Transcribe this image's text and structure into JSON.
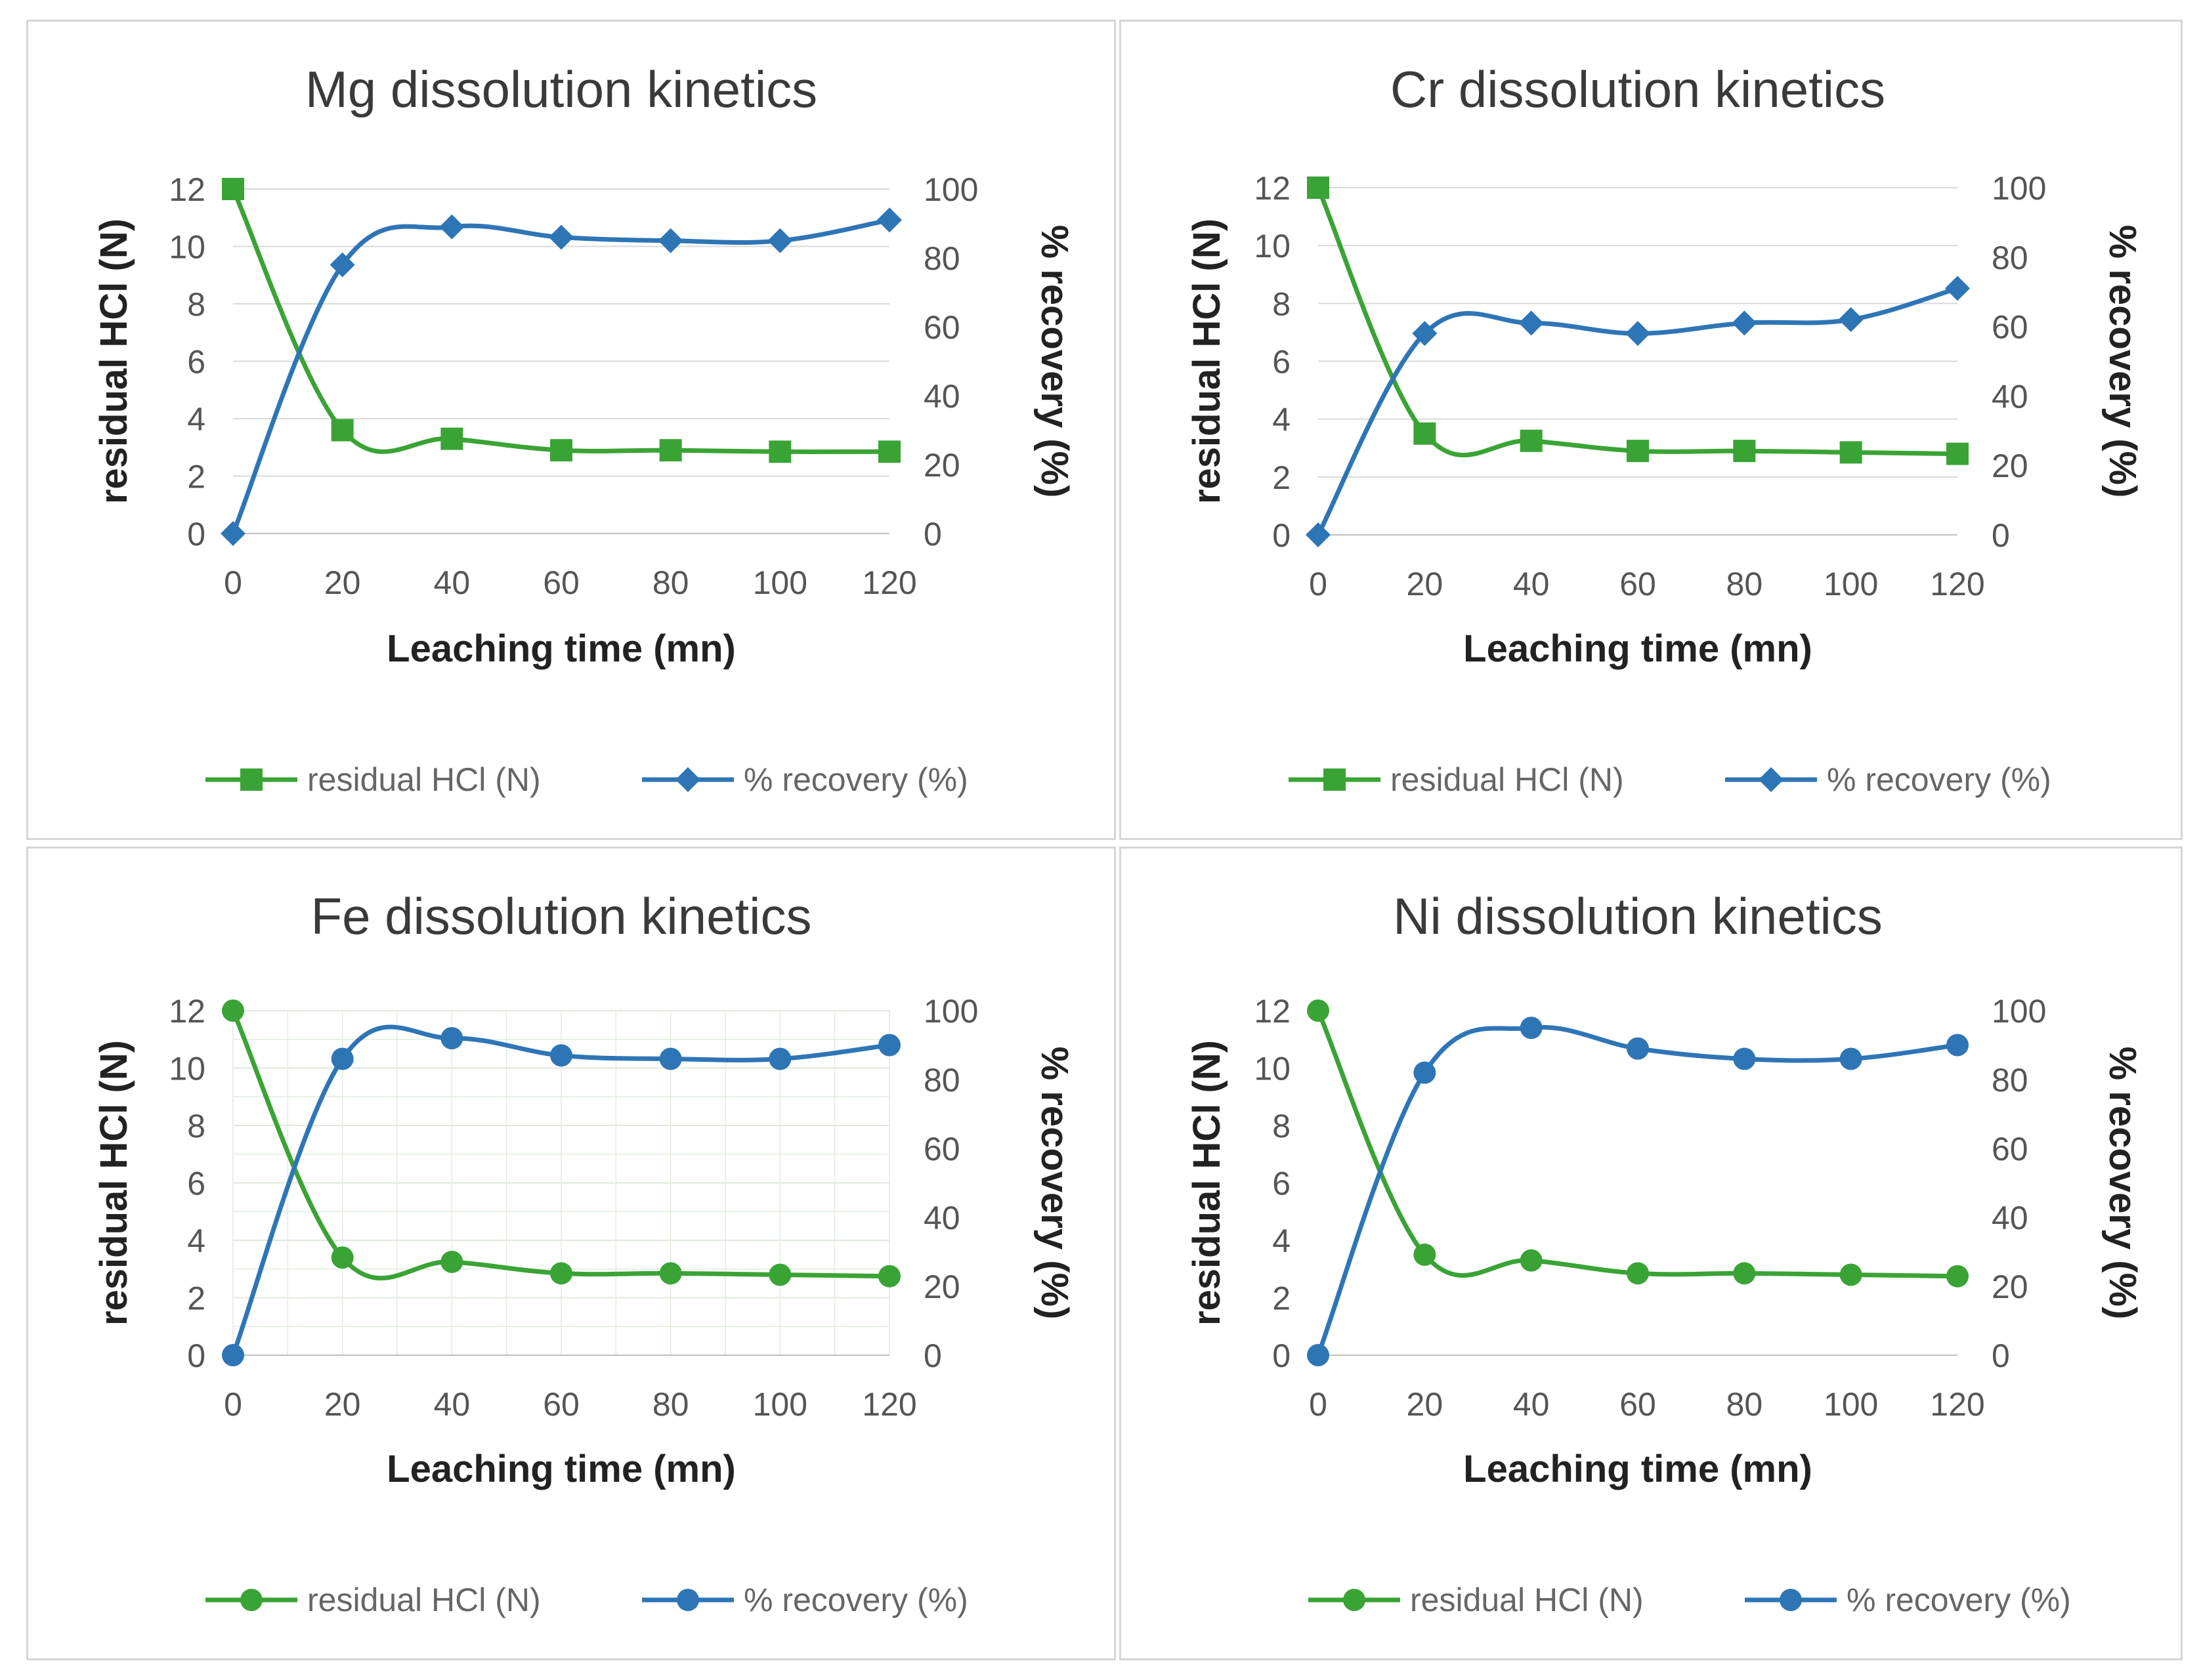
{
  "colors": {
    "hcl": "#3aa335",
    "recovery": "#2e75b6",
    "grid": "#d9d9d9",
    "axis": "#bfbfbf"
  },
  "chart_data": [
    {
      "type": "line",
      "title": "Mg dissolution kinetics",
      "xlabel": "Leaching time (mn)",
      "ylabel": "residual HCl (N)",
      "y2label": "% recovery (%)",
      "x": [
        0,
        20,
        40,
        60,
        80,
        100,
        120
      ],
      "xlim": [
        0,
        120
      ],
      "ylim": [
        0,
        12
      ],
      "y2lim": [
        0,
        100
      ],
      "xticks": [
        "0",
        "20",
        "40",
        "60",
        "80",
        "100",
        "120"
      ],
      "yticks": [
        "0",
        "2",
        "4",
        "6",
        "8",
        "10",
        "12"
      ],
      "y2ticks": [
        "0",
        "20",
        "40",
        "60",
        "80",
        "100"
      ],
      "grid": "horizontal",
      "legend_position": "bottom",
      "series": [
        {
          "name": "residual HCl (N)",
          "axis": "left",
          "marker": "square",
          "color": "#3aa335",
          "values": [
            12.0,
            3.6,
            3.3,
            2.9,
            2.9,
            2.85,
            2.85
          ]
        },
        {
          "name": "% recovery (%)",
          "axis": "right",
          "marker": "diamond",
          "color": "#2e75b6",
          "values": [
            0,
            78,
            89,
            86,
            85,
            85,
            91
          ]
        }
      ]
    },
    {
      "type": "line",
      "title": "Cr dissolution kinetics",
      "xlabel": "Leaching time (mn)",
      "ylabel": "residual HCl (N)",
      "y2label": "% recovery (%)",
      "x": [
        0,
        20,
        40,
        60,
        80,
        100,
        120
      ],
      "xlim": [
        0,
        120
      ],
      "ylim": [
        0,
        12
      ],
      "y2lim": [
        0,
        100
      ],
      "xticks": [
        "0",
        "20",
        "40",
        "60",
        "80",
        "100",
        "120"
      ],
      "yticks": [
        "0",
        "2",
        "4",
        "6",
        "8",
        "10",
        "12"
      ],
      "y2ticks": [
        "0",
        "20",
        "40",
        "60",
        "80",
        "100"
      ],
      "grid": "horizontal",
      "legend_position": "bottom",
      "series": [
        {
          "name": "residual HCl (N)",
          "axis": "left",
          "marker": "square",
          "color": "#3aa335",
          "values": [
            12.0,
            3.5,
            3.25,
            2.9,
            2.9,
            2.85,
            2.8
          ]
        },
        {
          "name": "% recovery (%)",
          "axis": "right",
          "marker": "diamond",
          "color": "#2e75b6",
          "values": [
            0,
            58,
            61,
            58,
            61,
            62,
            71
          ]
        }
      ]
    },
    {
      "type": "line",
      "title": "Fe dissolution kinetics",
      "xlabel": "Leaching time (mn)",
      "ylabel": "residual HCl (N)",
      "y2label": "% recovery (%)",
      "x": [
        0,
        20,
        40,
        60,
        80,
        100,
        120
      ],
      "xlim": [
        0,
        120
      ],
      "ylim": [
        0,
        12
      ],
      "y2lim": [
        0,
        100
      ],
      "xticks": [
        "0",
        "20",
        "40",
        "60",
        "80",
        "100",
        "120"
      ],
      "yticks": [
        "0",
        "2",
        "4",
        "6",
        "8",
        "10",
        "12"
      ],
      "y2ticks": [
        "0",
        "20",
        "40",
        "60",
        "80",
        "100"
      ],
      "grid": "both",
      "legend_position": "bottom",
      "series": [
        {
          "name": "residual HCl (N)",
          "axis": "left",
          "marker": "circle",
          "color": "#3aa335",
          "values": [
            12.0,
            3.4,
            3.25,
            2.85,
            2.85,
            2.8,
            2.75
          ]
        },
        {
          "name": "% recovery (%)",
          "axis": "right",
          "marker": "circle",
          "color": "#2e75b6",
          "values": [
            0,
            86,
            92,
            87,
            86,
            86,
            90
          ]
        }
      ]
    },
    {
      "type": "line",
      "title": "Ni dissolution kinetics",
      "xlabel": "Leaching time (mn)",
      "ylabel": "residual HCl (N)",
      "y2label": "% recovery (%)",
      "x": [
        0,
        20,
        40,
        60,
        80,
        100,
        120
      ],
      "xlim": [
        0,
        120
      ],
      "ylim": [
        0,
        12
      ],
      "y2lim": [
        0,
        100
      ],
      "xticks": [
        "0",
        "20",
        "40",
        "60",
        "80",
        "100",
        "120"
      ],
      "yticks": [
        "0",
        "2",
        "4",
        "6",
        "8",
        "10",
        "12"
      ],
      "y2ticks": [
        "0",
        "20",
        "40",
        "60",
        "80",
        "100"
      ],
      "grid": "none",
      "legend_position": "bottom",
      "series": [
        {
          "name": "residual HCl (N)",
          "axis": "left",
          "marker": "circle",
          "color": "#3aa335",
          "values": [
            12.0,
            3.5,
            3.3,
            2.85,
            2.85,
            2.8,
            2.75
          ]
        },
        {
          "name": "% recovery (%)",
          "axis": "right",
          "marker": "circle",
          "color": "#2e75b6",
          "values": [
            0,
            82,
            95,
            89,
            86,
            86,
            90
          ]
        }
      ]
    }
  ]
}
